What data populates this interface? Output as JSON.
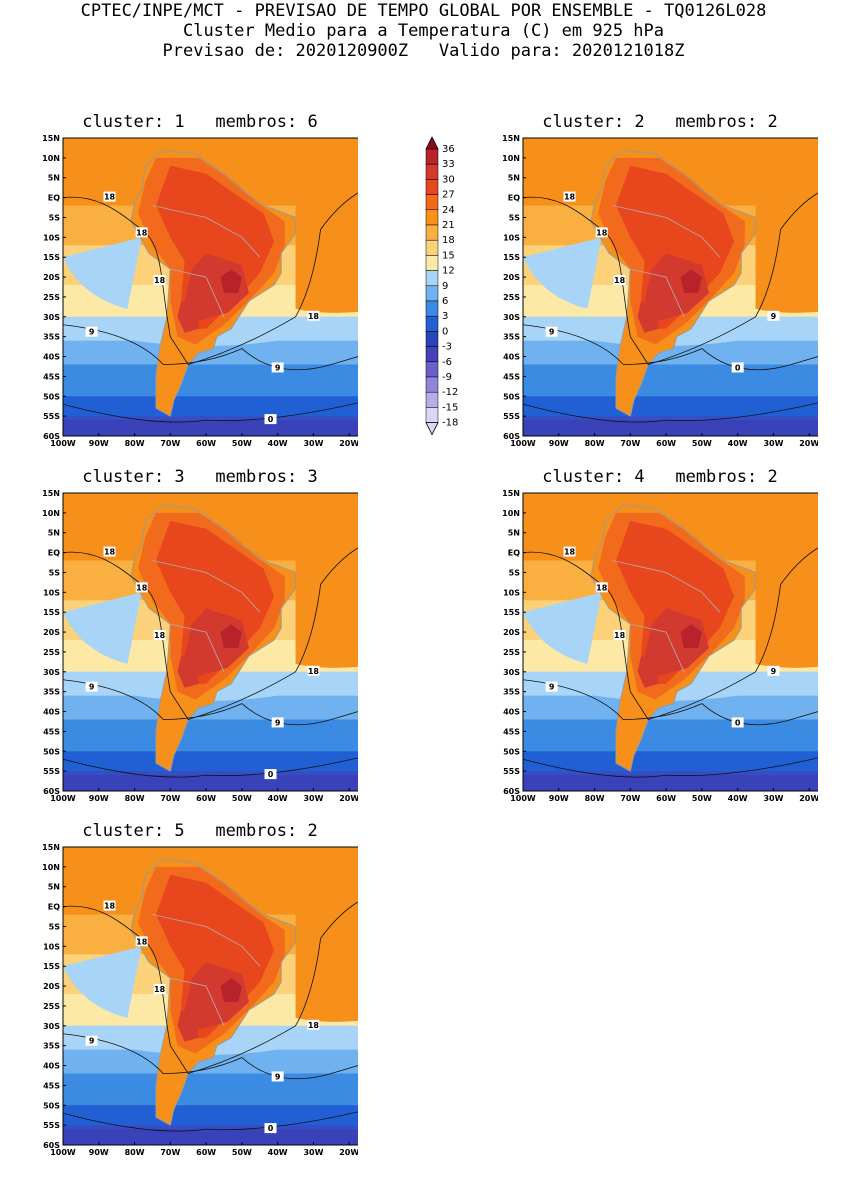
{
  "header": {
    "line1": "CPTEC/INPE/MCT - PREVISAO DE TEMPO GLOBAL POR ENSEMBLE - TQ0126L028",
    "line2": "Cluster Medio para a Temperatura (C) em 925 hPa",
    "line3": "Previsao de: 2020120900Z   Valido para: 2020121018Z"
  },
  "panels": [
    {
      "title": "cluster: 1   membros: 6",
      "contour_labels": [
        "18",
        "18",
        "18",
        "18",
        "9",
        "9",
        "0"
      ]
    },
    {
      "title": "cluster: 2   membros: 2",
      "contour_labels": [
        "18",
        "18",
        "18",
        "9",
        "9",
        "0"
      ]
    },
    {
      "title": "cluster: 3   membros: 3",
      "contour_labels": [
        "18",
        "18",
        "18",
        "18",
        "9",
        "9",
        "0"
      ]
    },
    {
      "title": "cluster: 4   membros: 2",
      "contour_labels": [
        "18",
        "18",
        "18",
        "9",
        "9",
        "0"
      ]
    },
    {
      "title": "cluster: 5   membros: 2",
      "contour_labels": [
        "18",
        "18",
        "18",
        "18",
        "9",
        "9",
        "0"
      ]
    }
  ],
  "axes": {
    "lat_labels": [
      "15N",
      "10N",
      "5N",
      "EQ",
      "5S",
      "10S",
      "15S",
      "20S",
      "25S",
      "30S",
      "35S",
      "40S",
      "45S",
      "50S",
      "55S",
      "60S"
    ],
    "lon_labels": [
      "100W",
      "90W",
      "80W",
      "70W",
      "60W",
      "50W",
      "40W",
      "30W",
      "20W"
    ]
  },
  "legend": {
    "labels": [
      "36",
      "33",
      "30",
      "27",
      "24",
      "21",
      "18",
      "15",
      "12",
      "9",
      "6",
      "3",
      "0",
      "-3",
      "-6",
      "-9",
      "-12",
      "-15",
      "-18"
    ],
    "colors": [
      "#8b0d12",
      "#b8222a",
      "#d23a30",
      "#e8461d",
      "#f26b1c",
      "#f7901a",
      "#f9b040",
      "#fbd27a",
      "#fde9a6",
      "#a8d4f7",
      "#6fb2ef",
      "#3c8be3",
      "#2060d4",
      "#2745b8",
      "#4840b8",
      "#6b5fca",
      "#8f86da",
      "#b6aee6",
      "#dcd6f4"
    ]
  }
}
